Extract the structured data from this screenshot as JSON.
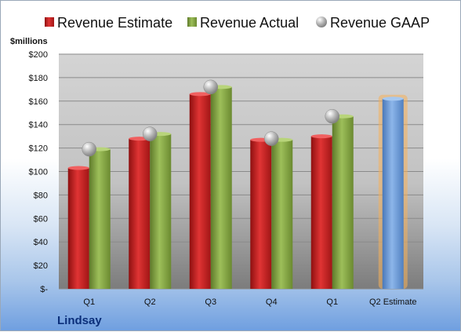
{
  "chart_data": {
    "type": "bar",
    "company": "Lindsay",
    "unit_label": "$millions",
    "categories": [
      "Q1",
      "Q2",
      "Q3",
      "Q4",
      "Q1",
      "Q2 Estimate"
    ],
    "series": [
      {
        "name": "Revenue Estimate",
        "values": [
          103,
          128,
          166,
          127,
          130,
          null
        ],
        "color": "#cc2222"
      },
      {
        "name": "Revenue Actual",
        "values": [
          119,
          132,
          172,
          127,
          147,
          null
        ],
        "color": "#88aa44"
      },
      {
        "name": "Revenue GAAP",
        "values": [
          119,
          132,
          172,
          128,
          147,
          null
        ],
        "color": "#b5b5b5"
      }
    ],
    "estimate_bar": {
      "category": "Q2 Estimate",
      "value": 162,
      "color": "#6d9fd8",
      "glow": "#f5b05a"
    },
    "y_ticks": [
      "$-",
      "$20",
      "$40",
      "$60",
      "$80",
      "$100",
      "$120",
      "$140",
      "$160",
      "$180",
      "$200"
    ],
    "ylim": [
      0,
      200
    ],
    "grid": true,
    "legend_position": "top"
  }
}
